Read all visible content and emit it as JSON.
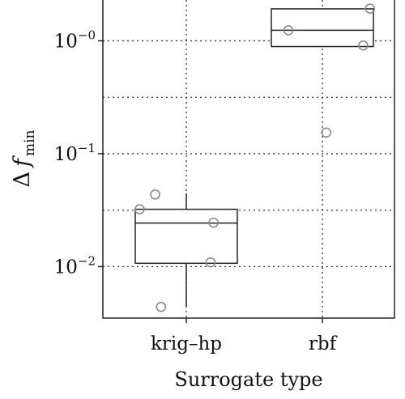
{
  "chart_data": {
    "type": "box",
    "title": "",
    "xlabel": "Surrogate type",
    "ylabel": {
      "main": "Δ",
      "var": "f",
      "sub": "min"
    },
    "yscale": "log",
    "ylim": [
      0.0035,
      2.3
    ],
    "grid": true,
    "categories": [
      "krig–hp",
      "rbf"
    ],
    "yticks": [
      {
        "value": 0.01,
        "base": "10",
        "exp": "−2"
      },
      {
        "value": 0.1,
        "base": "10",
        "exp": "−1"
      },
      {
        "value": 1.0,
        "base": "10",
        "exp": "−0"
      }
    ],
    "minor_gridlines": [
      0.0316,
      0.316
    ],
    "series": [
      {
        "category": "krig–hp",
        "box": {
          "whisker_low": 0.0044,
          "q1": 0.0107,
          "median": 0.0243,
          "q3": 0.0322,
          "whisker_high": 0.0445
        },
        "points": [
          {
            "jitter": -0.32,
            "y": 0.0435
          },
          {
            "jitter": -0.48,
            "y": 0.0322
          },
          {
            "jitter": 0.28,
            "y": 0.0245
          },
          {
            "jitter": 0.25,
            "y": 0.0109
          },
          {
            "jitter": -0.26,
            "y": 0.0044
          }
        ]
      },
      {
        "category": "rbf",
        "box": {
          "whisker_low": 0.89,
          "q1": 0.89,
          "median": 1.24,
          "q3": 1.92,
          "whisker_high": 1.92
        },
        "points": [
          {
            "jitter": -0.35,
            "y": 1.24
          },
          {
            "jitter": 0.49,
            "y": 1.93
          },
          {
            "jitter": 0.42,
            "y": 0.91
          },
          {
            "jitter": 0.04,
            "y": 0.154
          }
        ]
      }
    ]
  }
}
